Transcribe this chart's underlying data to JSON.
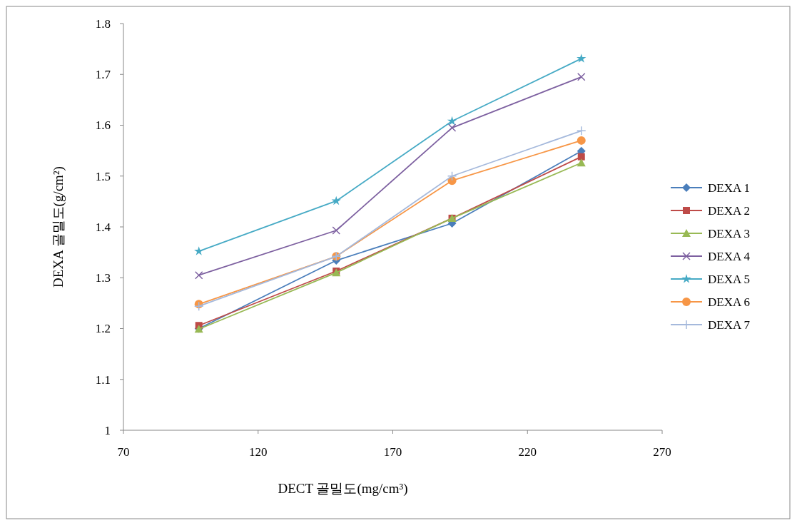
{
  "chart_data": {
    "type": "line",
    "xlabel": "DECT 골밀도(mg/cm³)",
    "ylabel": "DEXA 골밀도(g/cm²)",
    "x": [
      98,
      149,
      192,
      240
    ],
    "xlim": [
      70,
      270
    ],
    "xticks": [
      70,
      120,
      170,
      220,
      270
    ],
    "ylim": [
      1,
      1.8
    ],
    "yticks": [
      1,
      1.1,
      1.2,
      1.3,
      1.4,
      1.5,
      1.6,
      1.7,
      1.8
    ],
    "grid": false,
    "legend": "right",
    "series": [
      {
        "name": "DEXA 1",
        "color": "#4a7ebb",
        "marker": "diamond",
        "values": [
          1.2,
          1.334,
          1.407,
          1.549
        ]
      },
      {
        "name": "DEXA 2",
        "color": "#be4b48",
        "marker": "square",
        "values": [
          1.206,
          1.313,
          1.417,
          1.538
        ]
      },
      {
        "name": "DEXA 3",
        "color": "#98b954",
        "marker": "triangle",
        "values": [
          1.199,
          1.31,
          1.417,
          1.526
        ]
      },
      {
        "name": "DEXA 4",
        "color": "#7d60a0",
        "marker": "cross",
        "values": [
          1.305,
          1.393,
          1.595,
          1.695
        ]
      },
      {
        "name": "DEXA 5",
        "color": "#46aac5",
        "marker": "star",
        "values": [
          1.352,
          1.451,
          1.608,
          1.731
        ]
      },
      {
        "name": "DEXA 6",
        "color": "#f79646",
        "marker": "circle",
        "values": [
          1.248,
          1.342,
          1.491,
          1.57
        ]
      },
      {
        "name": "DEXA 7",
        "color": "#a5b9dc",
        "marker": "plus",
        "values": [
          1.244,
          1.342,
          1.5,
          1.589
        ]
      }
    ]
  }
}
